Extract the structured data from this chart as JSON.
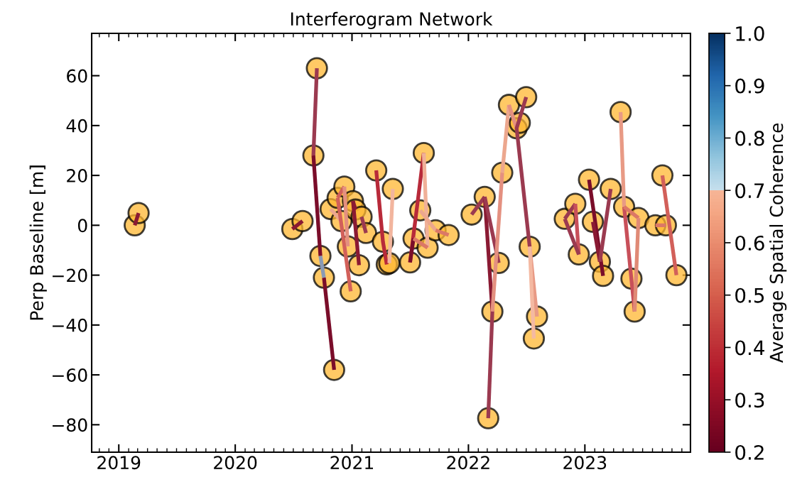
{
  "chart_data": {
    "type": "scatter",
    "title": "Interferogram Network",
    "ylabel": "Perp Baseline [m]",
    "clabel": "Average Spatial Coherence",
    "xlim": [
      "2018-10-08",
      "2023-11-28"
    ],
    "xticks": [
      "2019",
      "2020",
      "2021",
      "2022",
      "2023"
    ],
    "ylim": [
      -91,
      77
    ],
    "yticks": [
      -80,
      -60,
      -40,
      -20,
      0,
      20,
      40,
      60
    ],
    "clim": [
      0.2,
      1
    ],
    "cticks": [
      0.2,
      0.3,
      0.4,
      0.5,
      0.6,
      0.7,
      0.8,
      0.9,
      {
        "value": 1,
        "label": "1.0"
      }
    ],
    "grid": false,
    "series": [
      {
        "color": "#ffb732",
        "marker": "circle",
        "x": [
          "2019-02-20",
          "2019-03-04",
          "2020-06-28",
          "2020-07-30",
          "2020-09-13",
          "2020-09-02",
          "2020-09-24",
          "2020-10-05",
          "2020-11-06",
          "2020-10-26",
          "2020-11-17",
          "2020-12-08",
          "2020-11-29",
          "2020-12-19",
          "2020-12-28",
          "2021-01-04",
          "2021-01-12",
          "2021-01-23",
          "2021-01-31",
          "2021-02-14",
          "2021-03-18",
          "2021-04-08",
          "2021-04-20",
          "2021-04-28",
          "2021-05-09",
          "2021-07-02",
          "2021-07-13",
          "2021-08-03",
          "2021-08-14",
          "2021-08-26",
          "2021-09-20",
          "2021-10-31",
          "2022-01-11",
          "2022-02-21",
          "2022-03-04",
          "2022-03-17",
          "2022-04-06",
          "2022-04-17",
          "2022-05-08",
          "2022-06-01",
          "2022-06-11",
          "2022-07-01",
          "2022-07-12",
          "2022-07-25",
          "2022-08-04",
          "2022-10-30",
          "2022-12-02",
          "2022-12-13",
          "2023-01-14",
          "2023-01-26",
          "2023-02-17",
          "2023-02-27",
          "2023-03-23",
          "2023-04-23",
          "2023-05-04",
          "2023-05-27",
          "2023-06-06",
          "2023-06-18",
          "2023-08-10",
          "2023-09-12",
          "2023-09-01",
          "2023-10-15"
        ],
        "values": [
          0,
          4.9,
          -1.5,
          1.7,
          63,
          28,
          -12.3,
          -21,
          -58,
          6.5,
          11,
          15.5,
          1.7,
          -8.5,
          -26.5,
          9.7,
          6.3,
          -16,
          3.4,
          -3.1,
          22,
          -6.6,
          -15.7,
          -15.2,
          14.6,
          -14.9,
          -5.3,
          6,
          29,
          -9,
          -2,
          -3.9,
          4.3,
          11.4,
          -77.4,
          -34.6,
          -15.1,
          21.1,
          48.3,
          38.9,
          41.1,
          51.4,
          -8.6,
          -45.4,
          -36.6,
          2.6,
          8.6,
          -11.7,
          18.3,
          1.4,
          -14.6,
          -20.3,
          14.6,
          45.4,
          7.4,
          -21.4,
          -34.6,
          2.9,
          0,
          0,
          20,
          -20
        ]
      },
      {
        "type": "line",
        "x": [
          "2019-02-20",
          "2019-03-04"
        ],
        "values": [
          0,
          4.9
        ],
        "color": "#8a1a33"
      },
      {
        "type": "line",
        "x": [
          "2020-06-28",
          "2020-07-30"
        ],
        "values": [
          -1.5,
          1.7
        ],
        "color": "#8a1a33"
      },
      {
        "type": "line",
        "x": [
          "2020-09-02",
          "2020-09-13"
        ],
        "values": [
          28,
          63
        ],
        "color": "#9b3a50"
      },
      {
        "type": "line",
        "x": [
          "2020-09-02",
          "2020-09-24"
        ],
        "values": [
          28,
          -12.3
        ],
        "color": "#7a0d2a"
      },
      {
        "type": "line",
        "x": [
          "2020-10-05",
          "2020-11-06"
        ],
        "values": [
          -21,
          -58
        ],
        "color": "#7a0d2a"
      },
      {
        "type": "line",
        "x": [
          "2020-10-26",
          "2020-11-29"
        ],
        "values": [
          6.5,
          1.7
        ],
        "color": "#eca78e"
      },
      {
        "type": "line",
        "x": [
          "2020-11-17",
          "2020-12-08"
        ],
        "values": [
          11,
          15.5
        ],
        "color": "#d2605a"
      },
      {
        "type": "line",
        "x": [
          "2020-11-17",
          "2020-12-28"
        ],
        "values": [
          11,
          -26.5
        ],
        "color": "#d2605a"
      },
      {
        "type": "line",
        "x": [
          "2020-12-08",
          "2020-12-19"
        ],
        "values": [
          15.5,
          -8.5
        ],
        "color": "#e49080"
      },
      {
        "type": "line",
        "x": [
          "2021-01-04",
          "2021-01-23"
        ],
        "values": [
          9.7,
          -16
        ],
        "color": "#8a1a33"
      },
      {
        "type": "line",
        "x": [
          "2021-01-04",
          "2021-01-12"
        ],
        "values": [
          9.7,
          6.3
        ],
        "color": "#8a1a33"
      },
      {
        "type": "line",
        "x": [
          "2021-01-31",
          "2021-02-14"
        ],
        "values": [
          3.4,
          -3.1
        ],
        "color": "#9b3a50"
      },
      {
        "type": "line",
        "x": [
          "2021-03-18",
          "2021-04-08",
          "2021-04-20"
        ],
        "values": [
          22,
          -6.6,
          -15.7
        ],
        "color": "#b82a3a"
      },
      {
        "type": "line",
        "x": [
          "2021-04-28",
          "2021-05-09"
        ],
        "values": [
          -15.2,
          14.6
        ],
        "color": "#f2b59e"
      },
      {
        "type": "line",
        "x": [
          "2021-07-02",
          "2021-08-14"
        ],
        "values": [
          -14.9,
          29
        ],
        "color": "#b82a3a"
      },
      {
        "type": "line",
        "x": [
          "2021-07-02",
          "2021-07-13"
        ],
        "values": [
          -14.9,
          -5.3
        ],
        "color": "#7a0d2a"
      },
      {
        "type": "line",
        "x": [
          "2021-08-14",
          "2021-08-26"
        ],
        "values": [
          29,
          -9
        ],
        "color": "#f0b098"
      },
      {
        "type": "line",
        "x": [
          "2021-07-13",
          "2021-08-26"
        ],
        "values": [
          -5.3,
          -9
        ],
        "color": "#dc7866"
      },
      {
        "type": "line",
        "x": [
          "2021-08-03",
          "2021-09-20"
        ],
        "values": [
          6,
          -2
        ],
        "color": "#eca78e"
      },
      {
        "type": "line",
        "x": [
          "2021-09-20",
          "2021-10-31"
        ],
        "values": [
          -2,
          -3.9
        ],
        "color": "#dc7866"
      },
      {
        "type": "line",
        "x": [
          "2022-01-11",
          "2022-02-21"
        ],
        "values": [
          4.3,
          11.4
        ],
        "color": "#9b3a50"
      },
      {
        "type": "line",
        "x": [
          "2022-02-21",
          "2022-03-17"
        ],
        "values": [
          11.4,
          -34.6
        ],
        "color": "#8a1a33"
      },
      {
        "type": "line",
        "x": [
          "2022-02-21",
          "2022-04-06"
        ],
        "values": [
          11.4,
          -15.1
        ],
        "color": "#9b3a50"
      },
      {
        "type": "line",
        "x": [
          "2022-03-04",
          "2022-03-17"
        ],
        "values": [
          -77.4,
          -34.6
        ],
        "color": "#9b3a50"
      },
      {
        "type": "line",
        "x": [
          "2022-03-17",
          "2022-04-17"
        ],
        "values": [
          -34.6,
          21.1
        ],
        "color": "#e49080"
      },
      {
        "type": "line",
        "x": [
          "2022-04-17",
          "2022-05-08"
        ],
        "values": [
          21.1,
          48.3
        ],
        "color": "#eca78e"
      },
      {
        "type": "line",
        "x": [
          "2022-05-08",
          "2022-06-01"
        ],
        "values": [
          48.3,
          38.9
        ],
        "color": "#e49080"
      },
      {
        "type": "line",
        "x": [
          "2022-07-01",
          "2022-06-01",
          "2022-07-12"
        ],
        "values": [
          51.4,
          38.9,
          -8.6
        ],
        "color": "#9b3a50"
      },
      {
        "type": "line",
        "x": [
          "2022-07-12",
          "2022-08-04"
        ],
        "values": [
          -8.6,
          -36.6
        ],
        "color": "#e89a85"
      },
      {
        "type": "line",
        "x": [
          "2022-07-12",
          "2022-07-25"
        ],
        "values": [
          -8.6,
          -45.4
        ],
        "color": "#f4b9a2"
      },
      {
        "type": "line",
        "x": [
          "2022-10-30",
          "2022-12-02"
        ],
        "values": [
          2.6,
          8.6
        ],
        "color": "#9b3a50"
      },
      {
        "type": "line",
        "x": [
          "2022-12-02",
          "2022-12-13"
        ],
        "values": [
          8.6,
          -11.7
        ],
        "color": "#c8505a"
      },
      {
        "type": "line",
        "x": [
          "2022-10-30",
          "2022-12-13"
        ],
        "values": [
          2.6,
          -11.7
        ],
        "color": "#9b3a50"
      },
      {
        "type": "line",
        "x": [
          "2023-01-14",
          "2023-02-27"
        ],
        "values": [
          18.3,
          -20.3
        ],
        "color": "#7a0d2a"
      },
      {
        "type": "line",
        "x": [
          "2023-01-26",
          "2023-02-17"
        ],
        "values": [
          1.4,
          -14.6
        ],
        "color": "#8a1a33"
      },
      {
        "type": "line",
        "x": [
          "2023-02-17",
          "2023-03-23"
        ],
        "values": [
          -14.6,
          14.6
        ],
        "color": "#9b3a50"
      },
      {
        "type": "line",
        "x": [
          "2023-04-23",
          "2023-05-04"
        ],
        "values": [
          45.4,
          7.4
        ],
        "color": "#e89a85"
      },
      {
        "type": "line",
        "x": [
          "2023-05-04",
          "2023-06-06"
        ],
        "values": [
          7.4,
          -34.6
        ],
        "color": "#c8505a"
      },
      {
        "type": "line",
        "x": [
          "2023-05-04",
          "2023-06-18"
        ],
        "values": [
          7.4,
          2.9
        ],
        "color": "#dc7866"
      },
      {
        "type": "line",
        "x": [
          "2023-06-06",
          "2023-06-18"
        ],
        "values": [
          -34.6,
          2.9
        ],
        "color": "#e08a76"
      },
      {
        "type": "line",
        "x": [
          "2023-08-10",
          "2023-09-12"
        ],
        "values": [
          0,
          0
        ],
        "color": "#dc7866"
      },
      {
        "type": "line",
        "x": [
          "2023-09-01",
          "2023-10-15"
        ],
        "values": [
          20,
          -20
        ],
        "color": "#d2605a"
      },
      {
        "type": "line",
        "x": [
          "2020-09-24",
          "2020-10-05"
        ],
        "values": [
          -12.3,
          -21
        ],
        "color": "#8a9ab5"
      }
    ]
  }
}
